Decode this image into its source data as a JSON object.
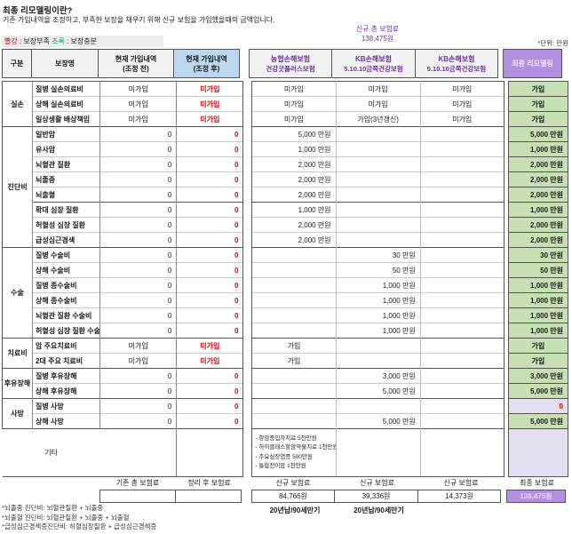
{
  "intro": {
    "title": "최종 리모델링이란?",
    "subtitle": "기존 가입내역을 조정하고, 부족한 보장을 채우기 위해 신규 보험을 가입했을때의 금액입니다."
  },
  "legend": {
    "red_word": "빨강",
    "red_text": " : 보장부족  ",
    "green_word": "초록",
    "green_text": " : 보장충분"
  },
  "new_total": {
    "label": "신규 총 보험료",
    "value": "138,475원"
  },
  "unit_note": "*단위: 만원",
  "header": {
    "gubun": "구분",
    "name": "보장명",
    "before_l1": "현재 가입내역",
    "before_l2": "(조정 전)",
    "after_l1": "현재 가입내역",
    "after_l2": "(조정 후)",
    "ins1_l1": "농협손해보험",
    "ins1_l2": "건강굿플러스보험",
    "ins2_l1": "KB손해보험",
    "ins2_l2": "5.10.10금쪽건강보험",
    "ins3_l1": "KB손해보험",
    "ins3_l2": "5.10.10금쪽건강보험",
    "final": "최종 리모델링"
  },
  "rows": [
    {
      "section": "실손",
      "section_span": 3,
      "name": "질병 실손의료비",
      "before": "미가입",
      "after": "미가입",
      "nh": "미가입",
      "kb1": "미가입",
      "kb2": "미가입",
      "final": "가입",
      "final_style": "green"
    },
    {
      "name": "상해 실손의료비",
      "before": "미가입",
      "after": "미가입",
      "nh": "미가입",
      "kb1": "미가입",
      "kb2": "미가입",
      "final": "가입",
      "final_style": "green"
    },
    {
      "name": "일상생활 배상책임",
      "before": "미가입",
      "after": "미가입",
      "nh": "미가입",
      "kb1": "가입(3년갱신)",
      "kb2": "미가입",
      "final": "가입",
      "final_style": "green"
    },
    {
      "section": "진단비",
      "section_span": 8,
      "group_start": true,
      "name": "일반암",
      "before": "0",
      "after": "0",
      "nh": "5,000 만원",
      "kb1": "",
      "kb2": "",
      "final": "5,000 만원",
      "final_style": "green"
    },
    {
      "name": "유사암",
      "before": "0",
      "after": "0",
      "nh": "1,000 만원",
      "kb1": "",
      "kb2": "",
      "final": "1,000 만원",
      "final_style": "green"
    },
    {
      "name": "뇌혈관 질환",
      "before": "0",
      "after": "0",
      "nh": "2,000 만원",
      "kb1": "",
      "kb2": "",
      "final": "2,000 만원",
      "final_style": "green"
    },
    {
      "name": "뇌졸중",
      "before": "0",
      "after": "0",
      "nh": "2,000 만원",
      "kb1": "",
      "kb2": "",
      "final": "2,000 만원",
      "final_style": "green"
    },
    {
      "name": "뇌출혈",
      "before": "0",
      "after": "0",
      "nh": "2,000 만원",
      "kb1": "",
      "kb2": "",
      "final": "2,000 만원",
      "final_style": "green"
    },
    {
      "group_start": true,
      "name": "확대 심장 질환",
      "before": "0",
      "after": "0",
      "nh": "1,000 만원",
      "kb1": "",
      "kb2": "",
      "final": "1,000 만원",
      "final_style": "green"
    },
    {
      "name": "허혈성 심장 질환",
      "before": "0",
      "after": "0",
      "nh": "2,000 만원",
      "kb1": "",
      "kb2": "",
      "final": "2,000 만원",
      "final_style": "green"
    },
    {
      "name": "급성심근경색",
      "before": "0",
      "after": "0",
      "nh": "2,000 만원",
      "kb1": "",
      "kb2": "",
      "final": "2,000 만원",
      "final_style": "green"
    },
    {
      "section": "수술",
      "section_span": 6,
      "group_start": true,
      "name": "질병 수술비",
      "before": "0",
      "after": "0",
      "nh": "",
      "kb1": "30 만원",
      "kb2": "",
      "final": "30 만원",
      "final_style": "green"
    },
    {
      "name": "상해 수술비",
      "before": "0",
      "after": "0",
      "nh": "",
      "kb1": "50 만원",
      "kb2": "",
      "final": "50 만원",
      "final_style": "green"
    },
    {
      "name": "질병 종수술비",
      "before": "0",
      "after": "0",
      "nh": "",
      "kb1": "1,000 만원",
      "kb2": "",
      "final": "1,000 만원",
      "final_style": "green"
    },
    {
      "name": "상해 종수술비",
      "before": "0",
      "after": "0",
      "nh": "",
      "kb1": "1,000 만원",
      "kb2": "",
      "final": "1,000 만원",
      "final_style": "green"
    },
    {
      "name": "뇌혈관 질환 수술비",
      "before": "0",
      "after": "0",
      "nh": "",
      "kb1": "1,000 만원",
      "kb2": "",
      "final": "1,000 만원",
      "final_style": "green"
    },
    {
      "name": "허혈성 심장 질환 수술비",
      "before": "0",
      "after": "0",
      "nh": "",
      "kb1": "1,000 만원",
      "kb2": "",
      "final": "1,000 만원",
      "final_style": "green"
    },
    {
      "section": "치료비",
      "section_span": 2,
      "group_start": true,
      "name": "암 주요치료비",
      "before": "미가입",
      "after": "미가입",
      "nh": "가입",
      "kb1": "",
      "kb2": "",
      "final": "가입",
      "final_style": "green"
    },
    {
      "name": "2대 주요 치료비",
      "before": "미가입",
      "after": "미가입",
      "nh": "가입",
      "kb1": "",
      "kb2": "",
      "final": "가입",
      "final_style": "green"
    },
    {
      "section": "후유장해",
      "section_span": 2,
      "group_start": true,
      "name": "질병 후유장해",
      "before": "0",
      "after": "0",
      "nh": "",
      "kb1": "3,000 만원",
      "kb2": "",
      "final": "3,000 만원",
      "final_style": "green"
    },
    {
      "name": "상해 후유장해",
      "before": "0",
      "after": "0",
      "nh": "",
      "kb1": "5,000 만원",
      "kb2": "",
      "final": "5,000 만원",
      "final_style": "green"
    },
    {
      "section": "사망",
      "section_span": 2,
      "group_start": true,
      "name": "질병 사망",
      "before": "0",
      "after": "0",
      "nh": "",
      "kb1": "",
      "kb2": "",
      "final": "0",
      "final_style": "lavender",
      "final_red": true
    },
    {
      "name": "상해 사망",
      "before": "0",
      "after": "0",
      "nh": "",
      "kb1": "5,000 만원",
      "kb2": "",
      "final": "5,000 만원",
      "final_style": "green"
    }
  ],
  "etc": {
    "label": "기타",
    "nh_items": [
      "- 항암중입자치료 5천만원",
      "- 하이클래스항암약물치료 1천만원",
      "- 주요심장염증 500만원",
      "- 통합전이암 1천만원"
    ],
    "final_style": "lavender"
  },
  "footer": {
    "labels": [
      "기존 총 보험료",
      "정리 후 보험료",
      "신규 보험료",
      "신규 보험료",
      "신규 보험료",
      "최종 보험료"
    ],
    "values": [
      "",
      "",
      "84,766원",
      "39,336원",
      "14,373원",
      "138,475원"
    ],
    "terms": [
      "20년납/90세만기",
      "20년납/90세만기"
    ]
  },
  "footnotes": [
    "*뇌졸중 진단비: 뇌혈관질환 + 뇌졸중",
    "*뇌출혈 진단비: 뇌혈관질환 + 뇌졸중 + 뇌출혈",
    "*급성심근경색증진단비: 허혈심장질환 + 급성심근경색증"
  ],
  "colors": {
    "accent_purple": "#b38fe0",
    "purple_text": "#7030a0",
    "green_cell": "#c6e0b4",
    "lavender_cell": "#e3def0",
    "blue_header": "#bdd7ee",
    "shortage_red": "#e00000",
    "enough_green": "#00b050"
  }
}
